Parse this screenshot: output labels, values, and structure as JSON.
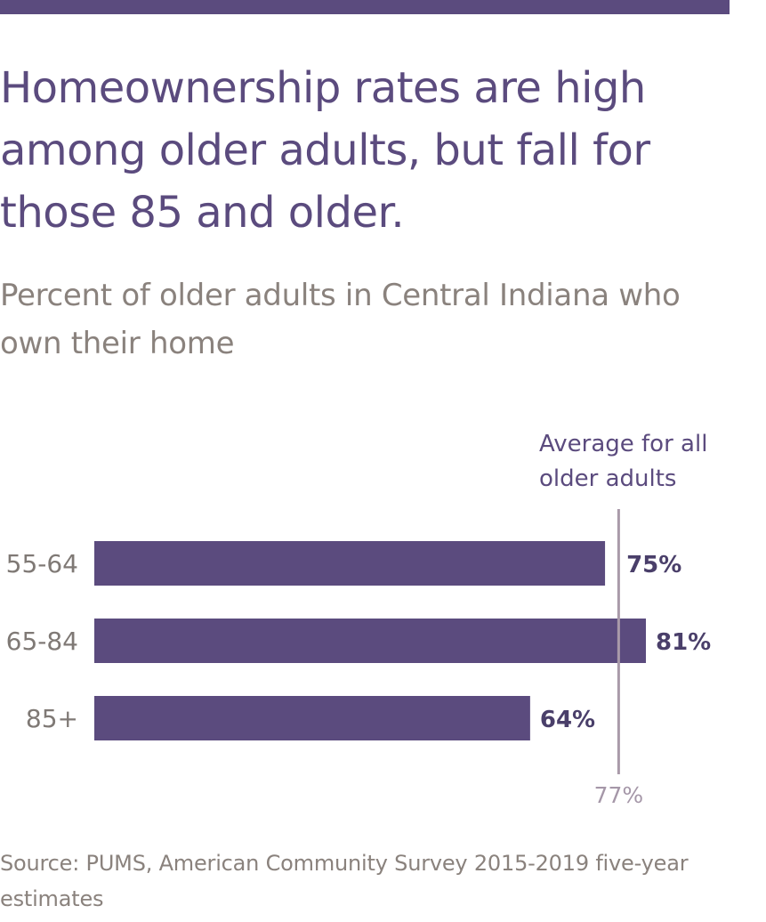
{
  "page": {
    "title": "Homeownership rates are high among older adults, but fall for those 85 and older.",
    "subtitle": "Percent of older adults in Central Indiana who own their home",
    "source": "Source: PUMS, American Community Survey 2015-2019 five-year estimates"
  },
  "colors": {
    "bar": "#5b4b7e",
    "title": "#5b4b7e",
    "subtitle": "#8a827d",
    "category_label": "#7f7975",
    "value_label": "#4a3f6a",
    "reference_line": "#a99aa9",
    "reference_value": "#a597a8",
    "reference_label": "#5b4b7e",
    "source": "#8a827d"
  },
  "chart_data": {
    "type": "bar",
    "orientation": "horizontal",
    "categories": [
      "55-64",
      "65-84",
      "85+"
    ],
    "values": [
      75,
      81,
      64
    ],
    "value_labels": [
      "75%",
      "81%",
      "64%"
    ],
    "xlim": [
      0,
      81
    ],
    "reference_line": {
      "value": 77,
      "label_lines": [
        "Average for all",
        "older adults"
      ],
      "value_label": "77%"
    }
  }
}
